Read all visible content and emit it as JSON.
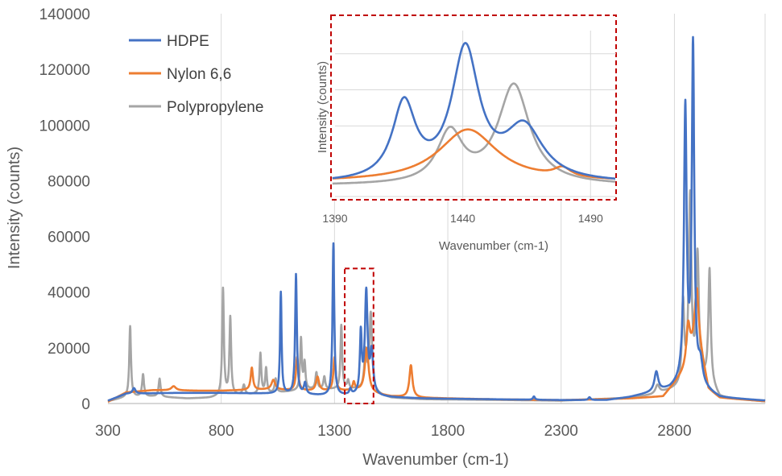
{
  "chart_data": {
    "type": "line",
    "xlabel": "Wavenumber (cm-1)",
    "ylabel": "Intensity (counts)",
    "xlim": [
      300,
      3200
    ],
    "ylim": [
      0,
      140000
    ],
    "xticks": [
      300,
      800,
      1300,
      1800,
      2300,
      2800
    ],
    "yticks": [
      0,
      20000,
      40000,
      60000,
      80000,
      100000,
      120000,
      140000
    ],
    "grid": "vertical",
    "legend_position": "top-left",
    "series": [
      {
        "name": "HDPE",
        "color": "#4472C4",
        "baseline": [
          [
            300,
            1000
          ],
          [
            380,
            3500
          ],
          [
            600,
            3800
          ],
          [
            800,
            3800
          ],
          [
            950,
            3600
          ],
          [
            1100,
            3400
          ],
          [
            1250,
            2800
          ],
          [
            1400,
            2800
          ],
          [
            1550,
            2200
          ],
          [
            1700,
            1800
          ],
          [
            2000,
            1500
          ],
          [
            2300,
            1200
          ],
          [
            2500,
            1200
          ],
          [
            2600,
            2200
          ],
          [
            2700,
            3800
          ],
          [
            2780,
            5000
          ],
          [
            2830,
            7000
          ],
          [
            2950,
            4000
          ],
          [
            3000,
            2000
          ],
          [
            3200,
            1000
          ]
        ],
        "peaks": [
          {
            "x": 415,
            "y": 2000,
            "w": 8
          },
          {
            "x": 1063,
            "y": 36500,
            "w": 4
          },
          {
            "x": 1130,
            "y": 43000,
            "w": 4.5
          },
          {
            "x": 1170,
            "y": 4000,
            "w": 6
          },
          {
            "x": 1295,
            "y": 54500,
            "w": 4.5
          },
          {
            "x": 1370,
            "y": 2000,
            "w": 5
          },
          {
            "x": 1416,
            "y": 21500,
            "w": 5
          },
          {
            "x": 1440,
            "y": 36500,
            "w": 7
          },
          {
            "x": 1464,
            "y": 15000,
            "w": 8
          },
          {
            "x": 2180,
            "y": 1200,
            "w": 5
          },
          {
            "x": 2425,
            "y": 1000,
            "w": 6
          },
          {
            "x": 2720,
            "y": 7000,
            "w": 10
          },
          {
            "x": 2848,
            "y": 98000,
            "w": 7
          },
          {
            "x": 2882,
            "y": 121000,
            "w": 6.5
          },
          {
            "x": 2915,
            "y": 8000,
            "w": 12
          }
        ]
      },
      {
        "name": "Nylon 6,6",
        "color": "#ED7D31",
        "baseline": [
          [
            300,
            600
          ],
          [
            380,
            4000
          ],
          [
            500,
            4800
          ],
          [
            700,
            4600
          ],
          [
            800,
            4600
          ],
          [
            900,
            4800
          ],
          [
            1000,
            5000
          ],
          [
            1200,
            4500
          ],
          [
            1400,
            4500
          ],
          [
            1550,
            2500
          ],
          [
            1700,
            2000
          ],
          [
            2000,
            1500
          ],
          [
            2300,
            1200
          ],
          [
            2600,
            1800
          ],
          [
            2750,
            2500
          ],
          [
            2850,
            12000
          ],
          [
            2900,
            25000
          ],
          [
            2950,
            5000
          ],
          [
            3000,
            2000
          ],
          [
            3200,
            800
          ]
        ],
        "peaks": [
          {
            "x": 590,
            "y": 1500,
            "w": 12
          },
          {
            "x": 935,
            "y": 8000,
            "w": 6
          },
          {
            "x": 1030,
            "y": 3500,
            "w": 10
          },
          {
            "x": 1135,
            "y": 12000,
            "w": 6
          },
          {
            "x": 1225,
            "y": 5000,
            "w": 8
          },
          {
            "x": 1300,
            "y": 12000,
            "w": 6
          },
          {
            "x": 1385,
            "y": 3000,
            "w": 6
          },
          {
            "x": 1442,
            "y": 16000,
            "w": 10
          },
          {
            "x": 1637,
            "y": 11500,
            "w": 8
          },
          {
            "x": 2860,
            "y": 14000,
            "w": 10
          },
          {
            "x": 2898,
            "y": 16000,
            "w": 10
          }
        ]
      },
      {
        "name": "Polypropylene",
        "color": "#A5A5A5",
        "baseline": [
          [
            300,
            800
          ],
          [
            380,
            2200
          ],
          [
            500,
            2500
          ],
          [
            650,
            1800
          ],
          [
            750,
            2000
          ],
          [
            800,
            2500
          ],
          [
            900,
            3000
          ],
          [
            1000,
            3500
          ],
          [
            1200,
            5000
          ],
          [
            1400,
            5000
          ],
          [
            1550,
            2000
          ],
          [
            1700,
            1500
          ],
          [
            2000,
            1300
          ],
          [
            2300,
            1000
          ],
          [
            2600,
            2000
          ],
          [
            2700,
            3000
          ],
          [
            2800,
            5000
          ],
          [
            2950,
            8000
          ],
          [
            3000,
            2000
          ],
          [
            3200,
            700
          ]
        ],
        "peaks": [
          {
            "x": 398,
            "y": 25500,
            "w": 4.5
          },
          {
            "x": 455,
            "y": 8000,
            "w": 5
          },
          {
            "x": 528,
            "y": 6500,
            "w": 5
          },
          {
            "x": 808,
            "y": 38500,
            "w": 4.5
          },
          {
            "x": 840,
            "y": 28000,
            "w": 4.5
          },
          {
            "x": 900,
            "y": 3500,
            "w": 6
          },
          {
            "x": 973,
            "y": 14500,
            "w": 4.5
          },
          {
            "x": 998,
            "y": 9000,
            "w": 4.5
          },
          {
            "x": 1040,
            "y": 5000,
            "w": 5
          },
          {
            "x": 1152,
            "y": 18500,
            "w": 4.5
          },
          {
            "x": 1168,
            "y": 9500,
            "w": 4.5
          },
          {
            "x": 1220,
            "y": 6000,
            "w": 5
          },
          {
            "x": 1255,
            "y": 4500,
            "w": 5
          },
          {
            "x": 1330,
            "y": 23000,
            "w": 4.5
          },
          {
            "x": 1360,
            "y": 3000,
            "w": 5
          },
          {
            "x": 1437,
            "y": 13500,
            "w": 7
          },
          {
            "x": 1460,
            "y": 28000,
            "w": 7
          },
          {
            "x": 2725,
            "y": 3000,
            "w": 10
          },
          {
            "x": 2838,
            "y": 29000,
            "w": 6
          },
          {
            "x": 2869,
            "y": 67000,
            "w": 7
          },
          {
            "x": 2902,
            "y": 45000,
            "w": 7
          },
          {
            "x": 2955,
            "y": 40000,
            "w": 6
          }
        ]
      }
    ],
    "highlight_region": {
      "x": [
        1345,
        1472
      ],
      "y": [
        0,
        48500
      ],
      "color": "#C00000"
    },
    "inset": {
      "xlabel": "Wavenumber (cm-1)",
      "ylabel": "Intensity (counts)",
      "xlim": [
        1390,
        1500
      ],
      "xticks": [
        1390,
        1440,
        1490
      ],
      "border_color": "#C00000",
      "series": [
        {
          "name": "HDPE",
          "base": 4000,
          "peaks": [
            {
              "x": 1417,
              "y": 21000,
              "w": 5.5
            },
            {
              "x": 1441,
              "y": 36000,
              "w": 6.5
            },
            {
              "x": 1464,
              "y": 14500,
              "w": 9
            }
          ]
        },
        {
          "name": "Nylon 6,6",
          "base": 4500,
          "peaks": [
            {
              "x": 1442,
              "y": 14500,
              "w": 14
            },
            {
              "x": 1479,
              "y": 2500,
              "w": 4
            }
          ]
        },
        {
          "name": "Polypropylene",
          "base": 3500,
          "peaks": [
            {
              "x": 1435,
              "y": 14000,
              "w": 6
            },
            {
              "x": 1460,
              "y": 27500,
              "w": 7.5
            }
          ]
        }
      ]
    }
  }
}
